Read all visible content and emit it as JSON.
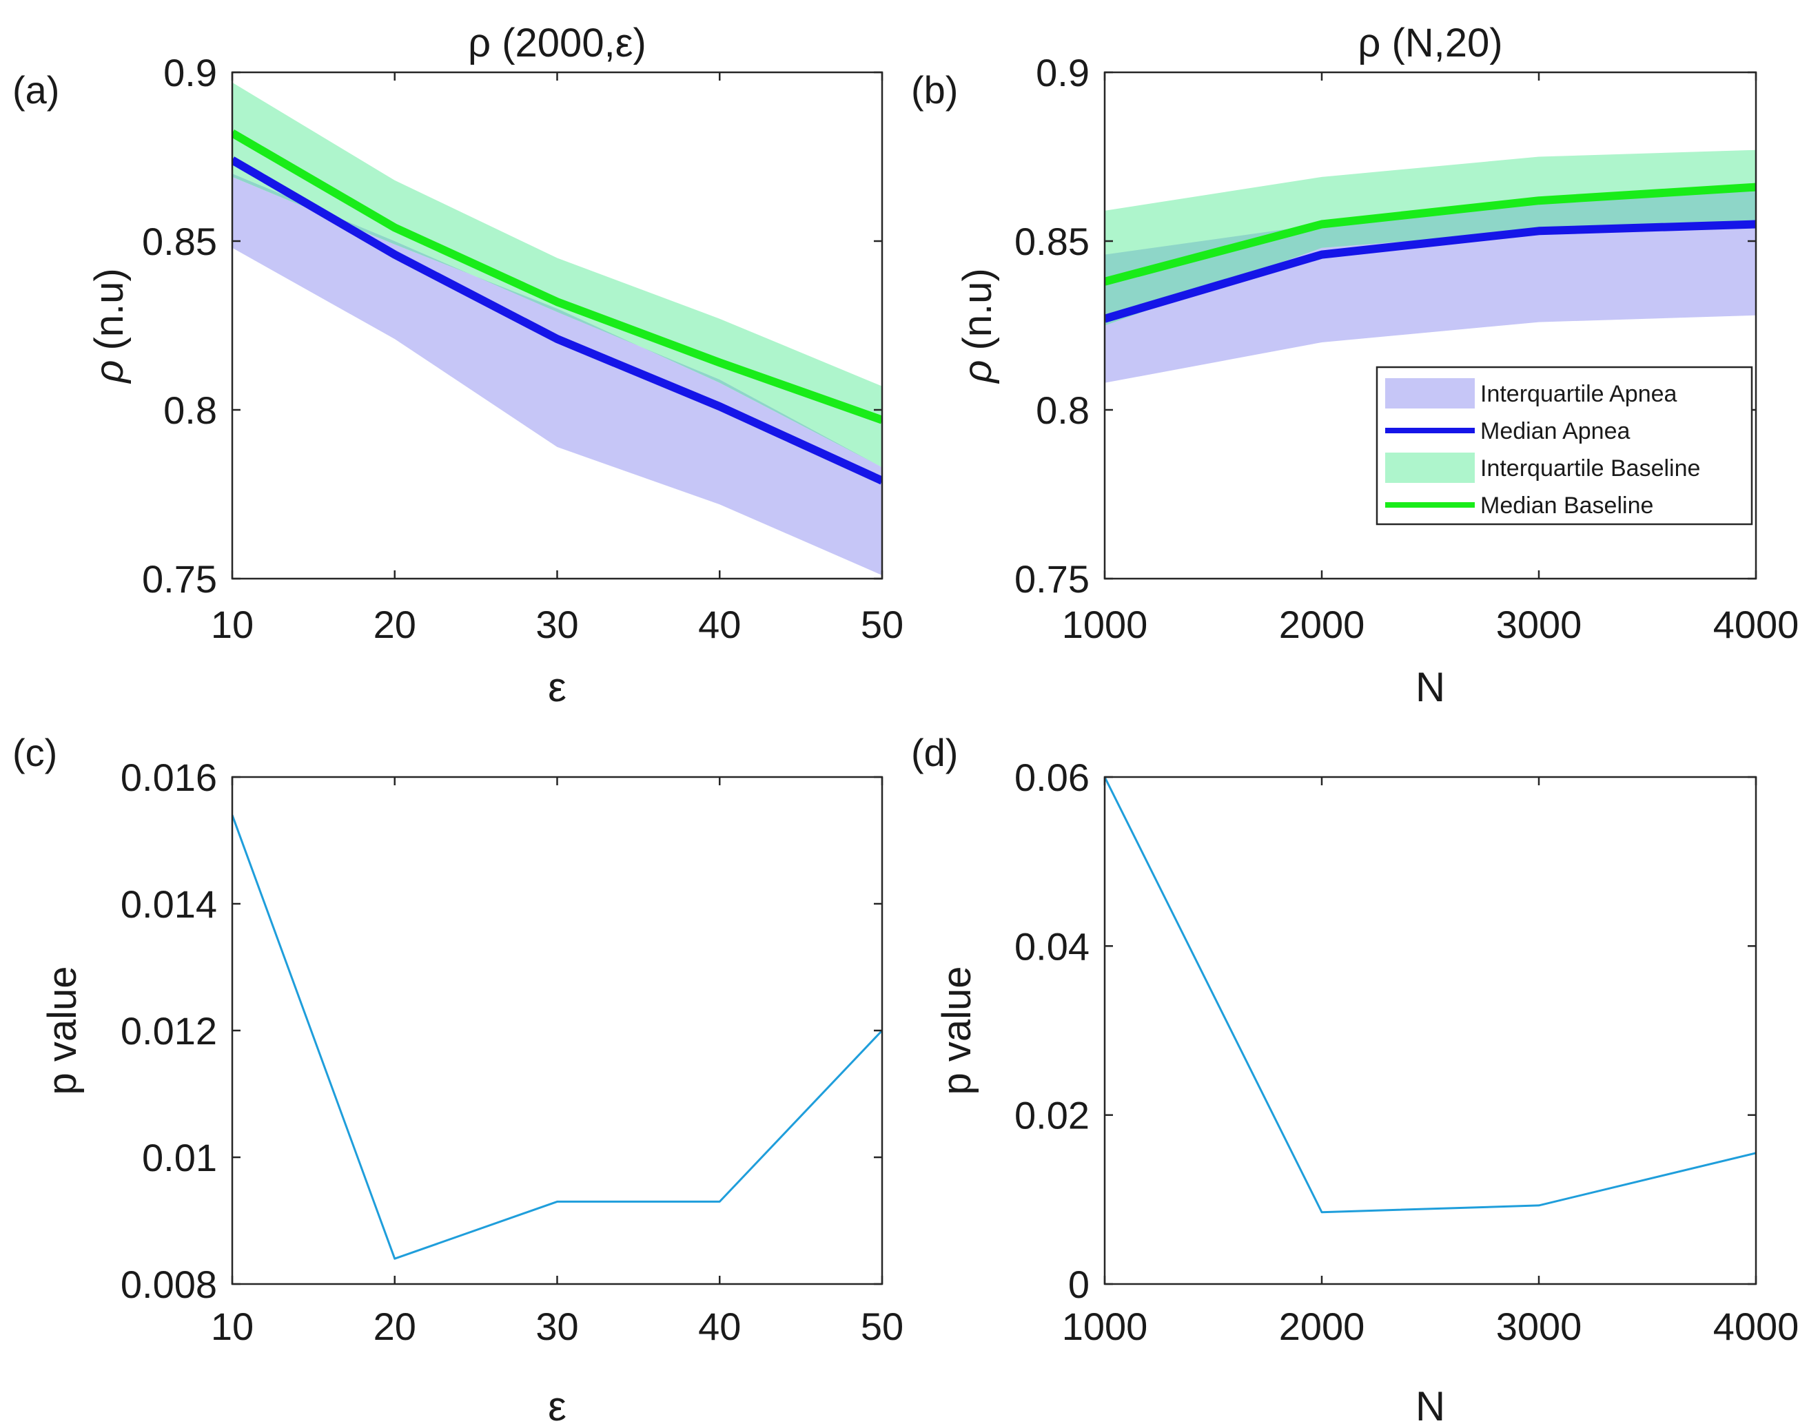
{
  "colors": {
    "apnea_band": "#c6c6f7",
    "apnea_line": "#1515e8",
    "baseline_band": "#aef5cc",
    "baseline_line": "#19ec19",
    "overlap_band": "#8ed6c8",
    "pvalue_line": "#1f9edb",
    "axis": "#262626",
    "text": "#1a1a1a"
  },
  "chart_data": [
    {
      "id": "a",
      "panel_label": "(a)",
      "type": "area",
      "title": "ρ (2000,ε)",
      "xlabel": "ε",
      "ylabel_symbol": "ρ",
      "ylabel": "(n.u)",
      "xlim": [
        10,
        50
      ],
      "ylim": [
        0.75,
        0.9
      ],
      "xticks": [
        10,
        20,
        30,
        40,
        50
      ],
      "xtick_labels": [
        "10",
        "20",
        "30",
        "40",
        "50"
      ],
      "yticks": [
        0.75,
        0.8,
        0.85,
        0.9
      ],
      "ytick_labels": [
        "0.75",
        "0.8",
        "0.85",
        "0.9"
      ],
      "x": [
        10,
        20,
        30,
        40,
        50
      ],
      "series": [
        {
          "name": "Interquartile Apnea",
          "kind": "band",
          "color_key": "apnea_band",
          "lower": [
            0.848,
            0.821,
            0.789,
            0.772,
            0.751
          ],
          "upper": [
            0.869,
            0.849,
            0.83,
            0.808,
            0.783
          ]
        },
        {
          "name": "Interquartile Baseline",
          "kind": "band",
          "color_key": "baseline_band",
          "lower": [
            0.87,
            0.85,
            0.829,
            0.809,
            0.783
          ],
          "upper": [
            0.897,
            0.868,
            0.845,
            0.827,
            0.807
          ]
        },
        {
          "name": "Median Apnea",
          "kind": "line",
          "color_key": "apnea_line",
          "values": [
            0.874,
            0.846,
            0.821,
            0.801,
            0.779
          ]
        },
        {
          "name": "Median Baseline",
          "kind": "line",
          "color_key": "baseline_line",
          "values": [
            0.882,
            0.854,
            0.832,
            0.814,
            0.797
          ]
        }
      ],
      "legend": null
    },
    {
      "id": "b",
      "panel_label": "(b)",
      "type": "area",
      "title": "ρ (N,20)",
      "xlabel": "N",
      "ylabel_symbol": "ρ",
      "ylabel": "(n.u)",
      "xlim": [
        1000,
        4000
      ],
      "ylim": [
        0.75,
        0.9
      ],
      "xticks": [
        1000,
        2000,
        3000,
        4000
      ],
      "xtick_labels": [
        "1000",
        "2000",
        "3000",
        "4000"
      ],
      "yticks": [
        0.75,
        0.8,
        0.85,
        0.9
      ],
      "ytick_labels": [
        "0.75",
        "0.8",
        "0.85",
        "0.9"
      ],
      "x": [
        1000,
        2000,
        3000,
        4000
      ],
      "series": [
        {
          "name": "Interquartile Apnea",
          "kind": "band",
          "color_key": "apnea_band",
          "lower": [
            0.808,
            0.82,
            0.826,
            0.828
          ],
          "upper": [
            0.846,
            0.855,
            0.861,
            0.865
          ]
        },
        {
          "name": "Interquartile Baseline",
          "kind": "band",
          "color_key": "baseline_band",
          "lower": [
            0.825,
            0.848,
            0.853,
            0.855
          ],
          "upper": [
            0.859,
            0.869,
            0.875,
            0.877
          ]
        },
        {
          "name": "Median Apnea",
          "kind": "line",
          "color_key": "apnea_line",
          "values": [
            0.827,
            0.846,
            0.853,
            0.855
          ]
        },
        {
          "name": "Median Baseline",
          "kind": "line",
          "color_key": "baseline_line",
          "values": [
            0.838,
            0.855,
            0.862,
            0.866
          ]
        }
      ],
      "legend": {
        "position": "bottom-right",
        "entries": [
          {
            "label": "Interquartile Apnea",
            "kind": "band",
            "color_key": "apnea_band"
          },
          {
            "label": "Median Apnea",
            "kind": "line",
            "color_key": "apnea_line"
          },
          {
            "label": "Interquartile Baseline",
            "kind": "band",
            "color_key": "baseline_band"
          },
          {
            "label": "Median Baseline",
            "kind": "line",
            "color_key": "baseline_line"
          }
        ]
      }
    },
    {
      "id": "c",
      "panel_label": "(c)",
      "type": "line",
      "title": "",
      "xlabel": "ε",
      "ylabel_symbol": "",
      "ylabel": "p value",
      "xlim": [
        10,
        50
      ],
      "ylim": [
        0.008,
        0.016
      ],
      "xticks": [
        10,
        20,
        30,
        40,
        50
      ],
      "xtick_labels": [
        "10",
        "20",
        "30",
        "40",
        "50"
      ],
      "yticks": [
        0.008,
        0.01,
        0.012,
        0.014,
        0.016
      ],
      "ytick_labels": [
        "0.008",
        "0.01",
        "0.012",
        "0.014",
        "0.016"
      ],
      "x": [
        10,
        20,
        30,
        40,
        50
      ],
      "series": [
        {
          "name": "p value",
          "kind": "line",
          "color_key": "pvalue_line",
          "values": [
            0.0154,
            0.0084,
            0.0093,
            0.0093,
            0.012
          ]
        }
      ],
      "legend": null
    },
    {
      "id": "d",
      "panel_label": "(d)",
      "type": "line",
      "title": "",
      "xlabel": "N",
      "ylabel_symbol": "",
      "ylabel": "p value",
      "xlim": [
        1000,
        4000
      ],
      "ylim": [
        0,
        0.06
      ],
      "xticks": [
        1000,
        2000,
        3000,
        4000
      ],
      "xtick_labels": [
        "1000",
        "2000",
        "3000",
        "4000"
      ],
      "yticks": [
        0,
        0.02,
        0.04,
        0.06
      ],
      "ytick_labels": [
        "0",
        "0.02",
        "0.04",
        "0.06"
      ],
      "x": [
        1000,
        2000,
        3000,
        4000
      ],
      "series": [
        {
          "name": "p value",
          "kind": "line",
          "color_key": "pvalue_line",
          "values": [
            0.06,
            0.0085,
            0.0093,
            0.0155
          ]
        }
      ],
      "legend": null
    }
  ]
}
